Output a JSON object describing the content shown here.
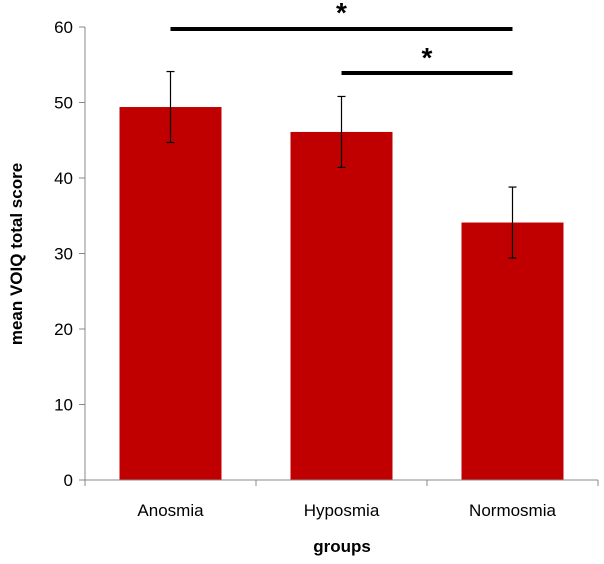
{
  "chart_data": {
    "type": "bar",
    "categories": [
      "Anosmia",
      "Hyposmia",
      "Normosmia"
    ],
    "values": [
      49.4,
      46.1,
      34.1
    ],
    "errors": [
      4.7,
      4.7,
      4.7
    ],
    "xlabel": "groups",
    "ylabel": "mean VOIQ total score",
    "ylim": [
      0,
      60
    ],
    "yticks": [
      0,
      10,
      20,
      30,
      40,
      50,
      60
    ],
    "grid": false,
    "legend": "none",
    "bar_color": "#C00000",
    "significance": [
      {
        "from": "Anosmia",
        "to": "Normosmia",
        "label": "*"
      },
      {
        "from": "Hyposmia",
        "to": "Normosmia",
        "label": "*"
      }
    ]
  }
}
